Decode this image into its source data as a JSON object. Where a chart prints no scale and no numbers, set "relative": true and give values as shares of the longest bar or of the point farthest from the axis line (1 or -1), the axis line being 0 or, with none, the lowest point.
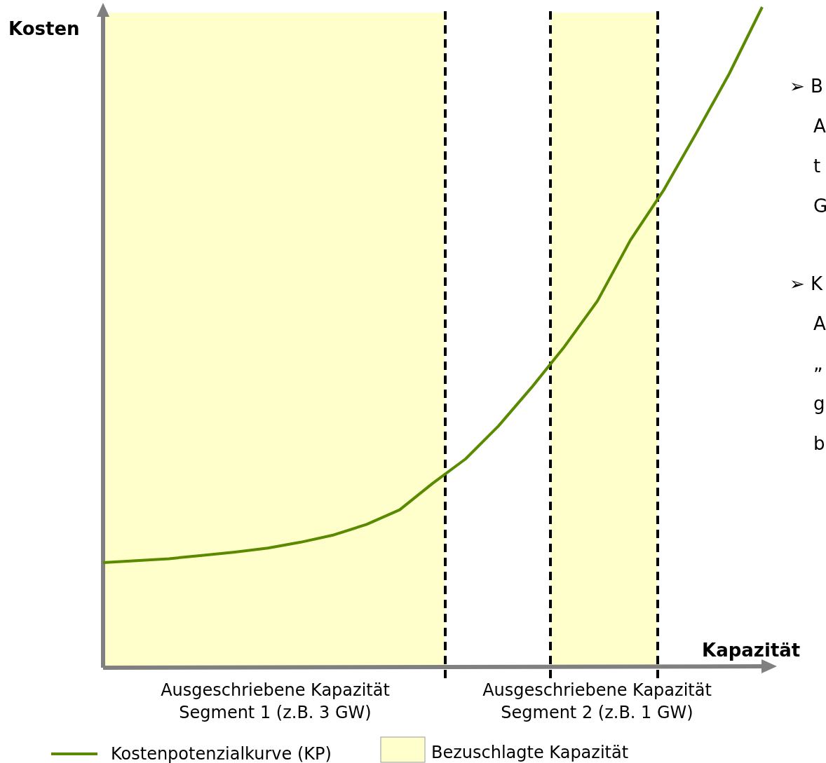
{
  "chart_data": {
    "type": "line",
    "relative": true,
    "xlabel": "Kapazität",
    "ylabel": "Kosten",
    "categories": [
      null,
      null,
      null,
      null,
      null,
      null,
      null,
      null,
      null,
      null,
      null,
      null,
      null,
      null,
      null,
      null,
      null,
      null,
      null,
      null,
      null
    ],
    "series": [
      {
        "name": "Kostenpotenzialkurve (KP)",
        "color": "#5a8a00",
        "values": [
          0.159,
          0.162,
          0.165,
          0.17,
          0.175,
          0.181,
          0.19,
          0.201,
          0.217,
          0.239,
          0.279,
          0.316,
          0.366,
          0.424,
          0.486,
          0.555,
          0.647,
          0.722,
          0.809,
          0.899,
          1
        ]
      }
    ],
    "annotations": [
      "Ausgeschriebene Kapazität\nSegment 1 (z.B. 3 GW)",
      "Ausgeschriebene Kapazität\nSegment 2 (z.B. 1 GW)",
      "Bezuschlagte Kapazität",
      "➢ B\nA\nt\nG",
      "➢ K\nA\n„\ng\nb"
    ],
    "grid": false,
    "line_style": "solid",
    "marker": "none",
    "legend": "bottom left"
  }
}
